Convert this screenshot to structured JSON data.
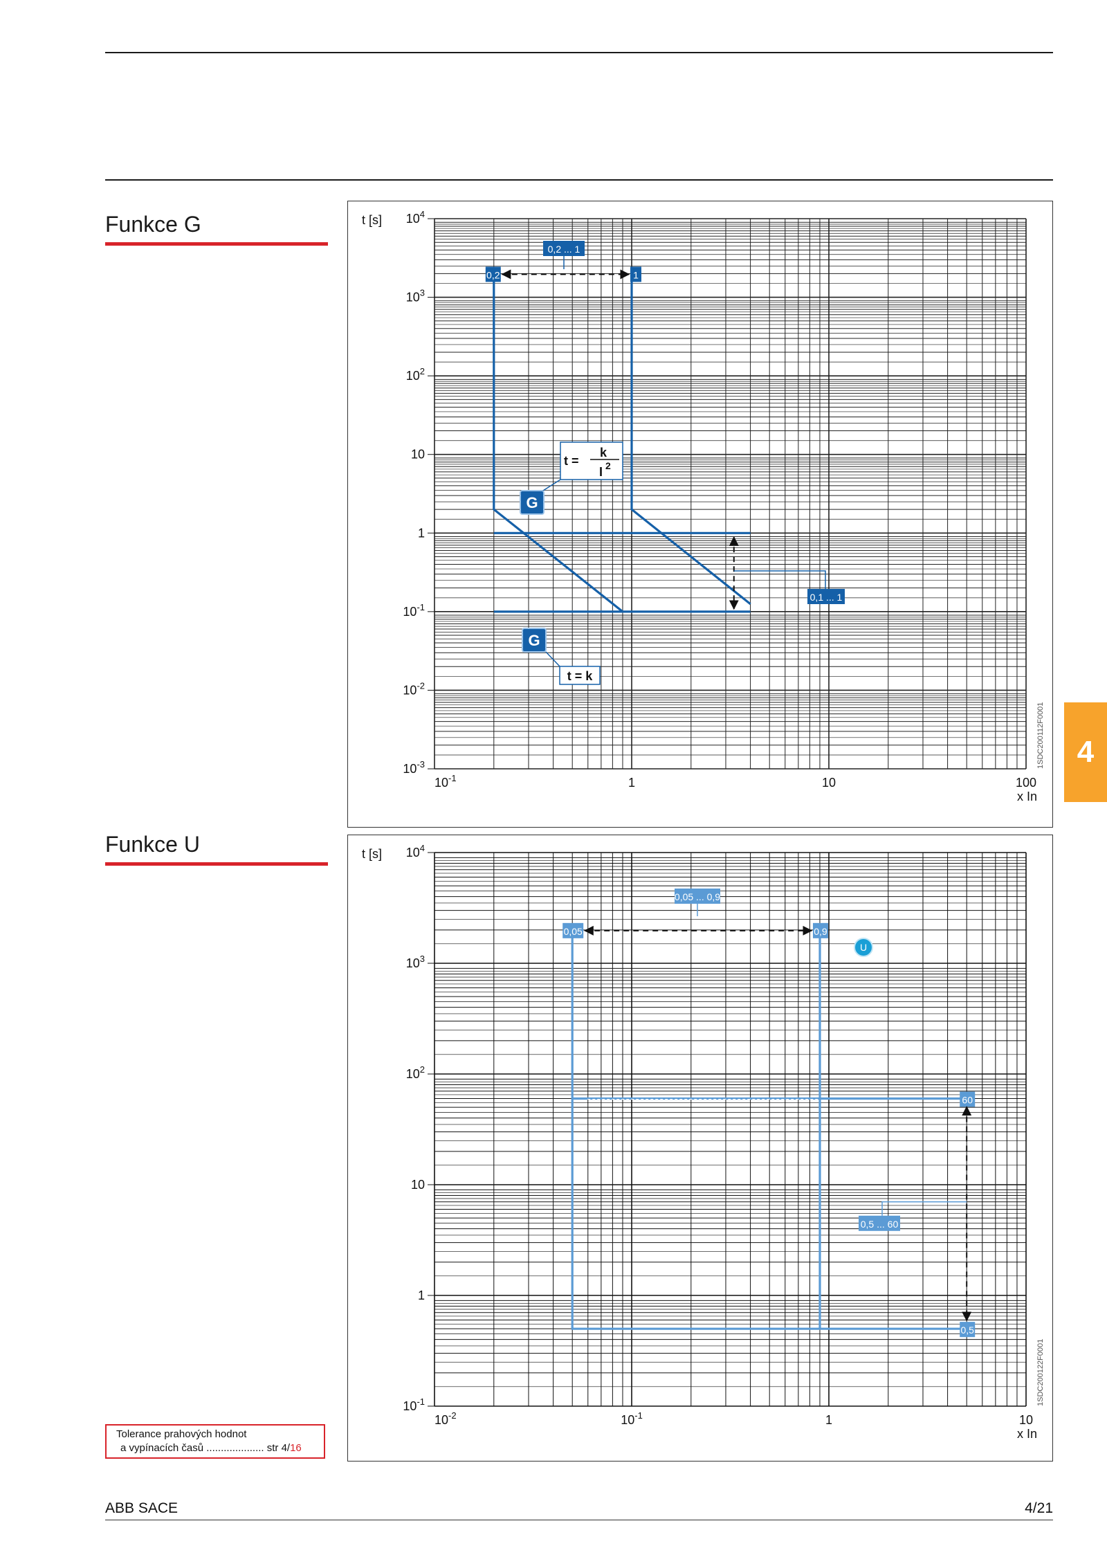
{
  "page": {
    "footer_company": "ABB SACE",
    "page_number": "4/21",
    "chapter_tab": "4",
    "tolerance_line1": "Tolerance prahových hodnot",
    "tolerance_line2": "a vypínacích časů  ....................  str 4/",
    "tolerance_page": "16"
  },
  "chart_data": [
    {
      "type": "line",
      "section_title": "Funkce G",
      "ylabel": "t [s]",
      "xlabel": "x In",
      "x_scale": "log",
      "y_scale": "log",
      "xlim": [
        0.1,
        100
      ],
      "ylim": [
        0.001,
        10000
      ],
      "x_ticks": [
        {
          "base": "10",
          "exp": "-1"
        },
        {
          "base": "1",
          "exp": ""
        },
        {
          "base": "10",
          "exp": ""
        },
        {
          "base": "100",
          "exp": ""
        }
      ],
      "y_ticks": [
        {
          "base": "10",
          "exp": "4"
        },
        {
          "base": "10",
          "exp": "3"
        },
        {
          "base": "10",
          "exp": "2"
        },
        {
          "base": "10",
          "exp": ""
        },
        {
          "base": "1",
          "exp": ""
        },
        {
          "base": "10",
          "exp": "-1"
        },
        {
          "base": "10",
          "exp": "-2"
        },
        {
          "base": "10",
          "exp": "-3"
        }
      ],
      "color": "#1560a8",
      "series": [
        {
          "x": [
            0.2,
            0.2,
            0.9,
            0.9
          ],
          "y": [
            2000,
            2,
            0.1,
            0.1
          ]
        },
        {
          "x": [
            0.2,
            4
          ],
          "y": [
            1,
            1
          ]
        },
        {
          "x": [
            0.2,
            4
          ],
          "y": [
            0.1,
            0.1
          ]
        },
        {
          "x": [
            1,
            1,
            4
          ],
          "y": [
            2000,
            2,
            0.125
          ]
        }
      ],
      "labels": {
        "range_i": "0,2 ... 1",
        "min_i": "0,2",
        "max_i": "1",
        "range_t": "0,1 ... 1",
        "formula_t_eq": "t =",
        "formula_num": "k",
        "formula_den": "I",
        "formula_exp": "2",
        "formula_tk": "t = k",
        "function_badge": "G"
      },
      "doc_code": "1SDC200112F0001"
    },
    {
      "type": "line",
      "section_title": "Funkce U",
      "ylabel": "t [s]",
      "xlabel": "x In",
      "x_scale": "log",
      "y_scale": "log",
      "xlim": [
        0.01,
        10
      ],
      "ylim": [
        0.1,
        10000
      ],
      "x_ticks": [
        {
          "base": "10",
          "exp": "-2"
        },
        {
          "base": "10",
          "exp": "-1"
        },
        {
          "base": "1",
          "exp": ""
        },
        {
          "base": "10",
          "exp": ""
        }
      ],
      "y_ticks": [
        {
          "base": "10",
          "exp": "4"
        },
        {
          "base": "10",
          "exp": "3"
        },
        {
          "base": "10",
          "exp": "2"
        },
        {
          "base": "10",
          "exp": ""
        },
        {
          "base": "1",
          "exp": ""
        },
        {
          "base": "10",
          "exp": "-1"
        }
      ],
      "color": "#5b9bd5",
      "series": [
        {
          "x": [
            0.05,
            0.05,
            5
          ],
          "y": [
            2000,
            0.5,
            0.5
          ]
        },
        {
          "x": [
            0.9,
            0.9
          ],
          "y": [
            2000,
            0.5
          ]
        },
        {
          "x": [
            0.05,
            5
          ],
          "y": [
            60,
            60
          ]
        }
      ],
      "labels": {
        "range_i": "0,05 ... 0,9",
        "min_i": "0,05",
        "max_i": "0,9",
        "range_t": "0,5 ... 60",
        "max_t": "60",
        "min_t": "0,5",
        "function_badge": "U"
      },
      "doc_code": "1SDC200122F0001"
    }
  ]
}
